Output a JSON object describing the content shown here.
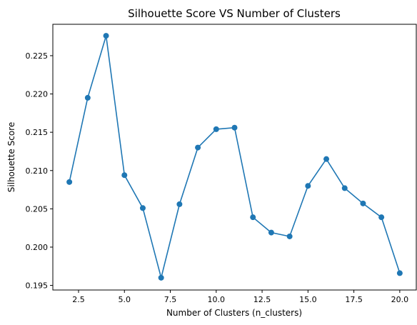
{
  "chart_data": {
    "type": "line",
    "title": "Silhouette Score VS Number of Clusters",
    "xlabel": "Number of Clusters (n_clusters)",
    "ylabel": "Silhouette Score",
    "xlim": [
      1.1,
      20.9
    ],
    "ylim": [
      0.1944,
      0.2291
    ],
    "grid": false,
    "x_ticks": [
      2.5,
      5.0,
      7.5,
      10.0,
      12.5,
      15.0,
      17.5,
      20.0
    ],
    "x_tick_labels": [
      "2.5",
      "5.0",
      "7.5",
      "10.0",
      "12.5",
      "15.0",
      "17.5",
      "20.0"
    ],
    "y_ticks": [
      0.195,
      0.2,
      0.205,
      0.21,
      0.215,
      0.22,
      0.225
    ],
    "y_tick_labels": [
      "0.195",
      "0.200",
      "0.205",
      "0.210",
      "0.215",
      "0.220",
      "0.225"
    ],
    "series": [
      {
        "color": "#1f77b4",
        "marker": "circle",
        "x": [
          2,
          3,
          4,
          5,
          6,
          7,
          8,
          9,
          10,
          11,
          12,
          13,
          14,
          15,
          16,
          17,
          18,
          19,
          20
        ],
        "y": [
          0.2085,
          0.2195,
          0.2276,
          0.2094,
          0.2051,
          0.196,
          0.2056,
          0.213,
          0.2154,
          0.2156,
          0.2039,
          0.2019,
          0.2014,
          0.208,
          0.2115,
          0.2077,
          0.2057,
          0.2039,
          0.1966
        ]
      }
    ]
  }
}
